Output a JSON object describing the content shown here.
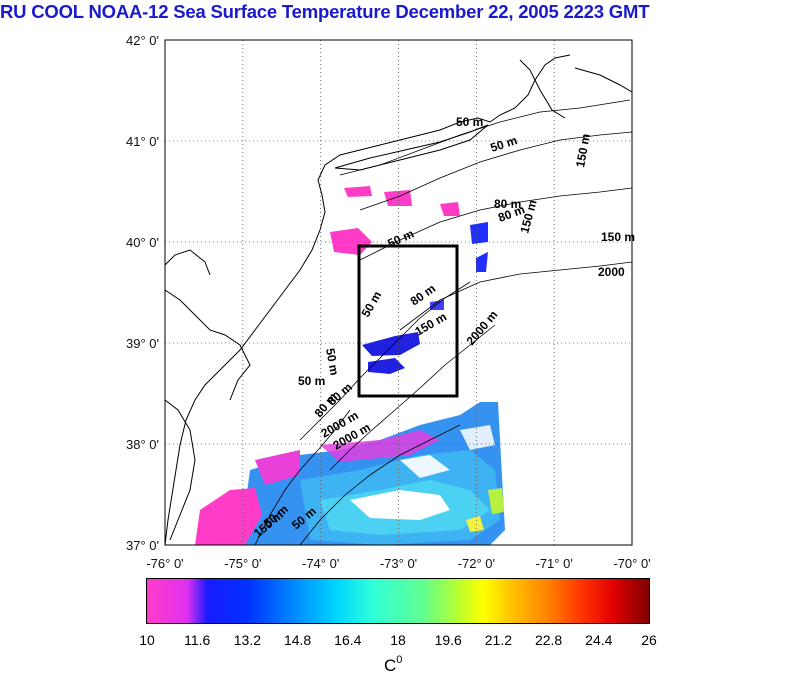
{
  "title": "RU COOL  NOAA-12 Sea Surface Temperature December 22, 2005 2223 GMT",
  "axes": {
    "lat_labels": [
      "42° 0'",
      "41° 0'",
      "40° 0'",
      "39° 0'",
      "38° 0'",
      "37° 0'"
    ],
    "lon_labels": [
      "-76° 0'",
      "-75° 0'",
      "-74° 0'",
      "-73° 0'",
      "-72° 0'",
      "-71° 0'",
      "-70° 0'"
    ],
    "lat_range": [
      37,
      42
    ],
    "lon_range": [
      -76,
      -70
    ]
  },
  "contour_labels": [
    "50 m",
    "50 m",
    "80 m",
    "80 m",
    "150 m",
    "150 m",
    "2000",
    "50 m",
    "80 m",
    "150 m",
    "2000 m",
    "50 m",
    "80 m",
    "2000 m",
    "2000 m",
    "50 m",
    "50 m",
    "80 m",
    "150 m",
    "50 m",
    "150 m",
    "50 m"
  ],
  "colorbar": {
    "ticks": [
      "10",
      "11.6",
      "13.2",
      "14.8",
      "16.4",
      "18",
      "19.6",
      "21.2",
      "22.8",
      "24.4",
      "26"
    ],
    "range": [
      10,
      26
    ],
    "unit": "C",
    "unit_sup": "0"
  },
  "colors": {
    "title": "#1a1acc",
    "cold": "#ff3cc8",
    "box": "#000000"
  },
  "study_box": {
    "lon": [
      -73.42,
      -72.25
    ],
    "lat": [
      38.5,
      40.0
    ]
  }
}
